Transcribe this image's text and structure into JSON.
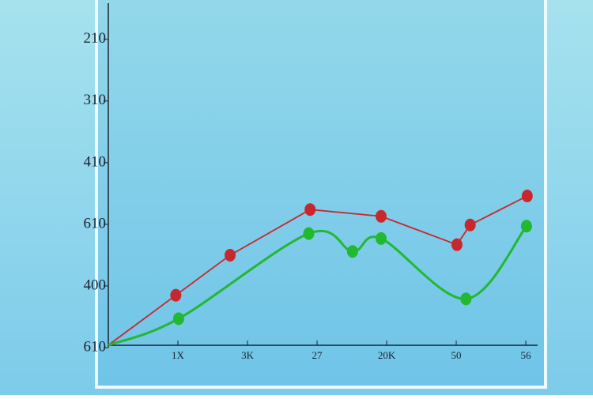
{
  "chart_data": {
    "type": "line",
    "xlim": [
      0,
      6.17
    ],
    "xticks": [
      {
        "value": 1,
        "label": "1X"
      },
      {
        "value": 2,
        "label": "3K"
      },
      {
        "value": 3,
        "label": "27"
      },
      {
        "value": 4,
        "label": "20K"
      },
      {
        "value": 5,
        "label": "50"
      },
      {
        "value": 6,
        "label": "56"
      }
    ],
    "ylim": [
      0,
      5.6
    ],
    "yticks": [
      {
        "value": 0,
        "label": "610"
      },
      {
        "value": 1,
        "label": "400"
      },
      {
        "value": 2,
        "label": "610"
      },
      {
        "value": 3,
        "label": "410"
      },
      {
        "value": 4,
        "label": "310"
      },
      {
        "value": 5,
        "label": "210"
      }
    ],
    "series": [
      {
        "color": "#c8282c",
        "smooth": false,
        "x": [
          0,
          0.97,
          1.75,
          2.9,
          3.92,
          5.01,
          5.2,
          6.02
        ],
        "values": [
          0.04,
          0.85,
          1.5,
          2.24,
          2.13,
          1.67,
          1.99,
          2.46
        ]
      },
      {
        "color": "#22b830",
        "smooth": true,
        "x": [
          0,
          1.01,
          2.88,
          3.51,
          3.92,
          5.14,
          6.01
        ],
        "values": [
          0.04,
          0.47,
          1.85,
          1.56,
          1.77,
          0.79,
          1.97
        ]
      }
    ]
  }
}
